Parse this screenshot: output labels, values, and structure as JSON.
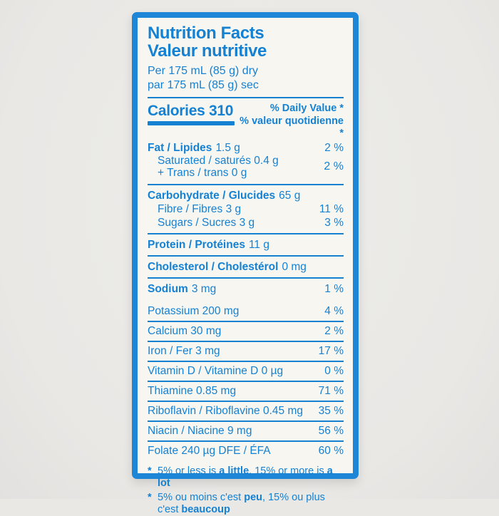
{
  "colors": {
    "blue": "#1581d3",
    "border": "#1e86d6",
    "paper": "#f7f6f1",
    "page": "#e9e8e5"
  },
  "header": {
    "title_en": "Nutrition Facts",
    "title_fr": "Valeur nutritive",
    "serving_en": "Per 175 mL (85 g) dry",
    "serving_fr": "par 175 mL (85 g) sec"
  },
  "calories": {
    "label": "Calories",
    "value": "310"
  },
  "daily_value": {
    "line_en": "% Daily Value *",
    "line_fr": "% valeur quotidienne *"
  },
  "nutrients": {
    "fat": {
      "label": "Fat / Lipides",
      "amount": "1.5 g",
      "dv": "2 %"
    },
    "saturated": {
      "line1": "Saturated / saturés 0.4 g",
      "line2": "+ Trans / trans 0 g",
      "dv": "2 %"
    },
    "carbohydrate": {
      "label": "Carbohydrate / Glucides",
      "amount": "65 g"
    },
    "fibre": {
      "label": "Fibre / Fibres 3 g",
      "dv": "11 %"
    },
    "sugars": {
      "label": "Sugars / Sucres 3 g",
      "dv": "3 %"
    },
    "protein": {
      "label": "Protein / Protéines",
      "amount": "11 g"
    },
    "cholesterol": {
      "label": "Cholesterol / Cholestérol",
      "amount": "0 mg"
    },
    "sodium": {
      "label": "Sodium",
      "amount": "3 mg",
      "dv": "1 %"
    }
  },
  "micronutrients": [
    {
      "name": "Potassium 200 mg",
      "dv": "4 %"
    },
    {
      "name": "Calcium 30 mg",
      "dv": "2 %"
    },
    {
      "name": "Iron / Fer 3 mg",
      "dv": "17 %"
    },
    {
      "name": "Vitamin D / Vitamine D 0 µg",
      "dv": "0 %"
    },
    {
      "name": "Thiamine 0.85 mg",
      "dv": "71 %"
    },
    {
      "name": "Riboflavin / Riboflavine 0.45 mg",
      "dv": "35 %"
    },
    {
      "name": "Niacin / Niacine 9 mg",
      "dv": "56 %"
    },
    {
      "name": "Folate 240 µg DFE / ÉFA",
      "dv": "60 %"
    }
  ],
  "footnotes": {
    "marker": "*",
    "en_pre": "5% or less is ",
    "en_bold1": "a little",
    "en_mid": ", 15% or more is ",
    "en_bold2": "a lot",
    "fr_pre": "5% ou moins c'est ",
    "fr_bold1": "peu",
    "fr_mid": ", 15% ou plus c'est ",
    "fr_bold2": "beaucoup"
  }
}
